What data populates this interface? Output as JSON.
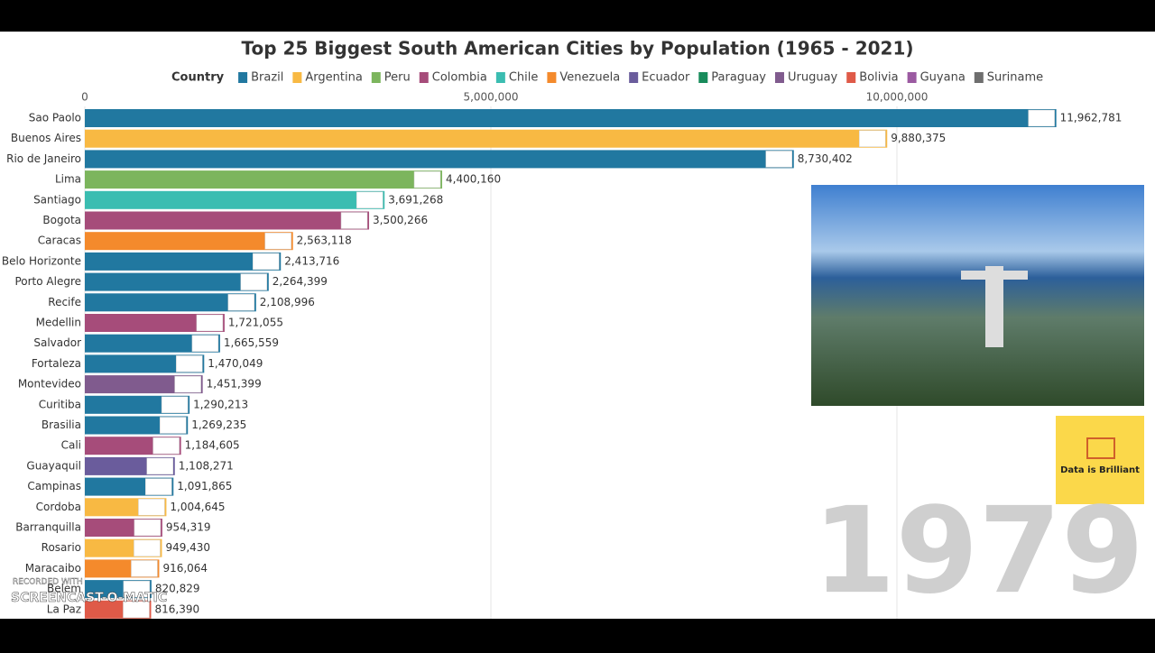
{
  "chart_data": {
    "type": "bar",
    "title": "Top 25 Biggest South American Cities by Population (1965 - 2021)",
    "legend_title": "Country",
    "legend": [
      {
        "name": "Brazil",
        "color": "#2178a0"
      },
      {
        "name": "Argentina",
        "color": "#f8b943"
      },
      {
        "name": "Peru",
        "color": "#7cb55d"
      },
      {
        "name": "Colombia",
        "color": "#a64c7a"
      },
      {
        "name": "Chile",
        "color": "#3bbdb1"
      },
      {
        "name": "Venezuela",
        "color": "#f48a2c"
      },
      {
        "name": "Ecuador",
        "color": "#6a5c9c"
      },
      {
        "name": "Paraguay",
        "color": "#188b5b"
      },
      {
        "name": "Uruguay",
        "color": "#805b8e"
      },
      {
        "name": "Bolivia",
        "color": "#df5a48"
      },
      {
        "name": "Guyana",
        "color": "#9b5aa1"
      },
      {
        "name": "Suriname",
        "color": "#6e6e6e"
      }
    ],
    "categories": [
      "Sao Paolo",
      "Buenos Aires",
      "Rio de Janeiro",
      "Lima",
      "Santiago",
      "Bogota",
      "Caracas",
      "Belo Horizonte",
      "Porto Alegre",
      "Recife",
      "Medellin",
      "Salvador",
      "Fortaleza",
      "Montevideo",
      "Curitiba",
      "Brasilia",
      "Cali",
      "Guayaquil",
      "Campinas",
      "Cordoba",
      "Barranquilla",
      "Rosario",
      "Maracaibo",
      "Belem",
      "La Paz"
    ],
    "values": [
      11962781,
      9880375,
      8730402,
      4400160,
      3691268,
      3500266,
      2563118,
      2413716,
      2264399,
      2108996,
      1721055,
      1665559,
      1470049,
      1451399,
      1290213,
      1269235,
      1184605,
      1108271,
      1091865,
      1004645,
      954319,
      949430,
      916064,
      820829,
      816390
    ],
    "value_labels": [
      "11,962,781",
      "9,880,375",
      "8,730,402",
      "4,400,160",
      "3,691,268",
      "3,500,266",
      "2,563,118",
      "2,413,716",
      "2,264,399",
      "2,108,996",
      "1,721,055",
      "1,665,559",
      "1,470,049",
      "1,451,399",
      "1,290,213",
      "1,269,235",
      "1,184,605",
      "1,108,271",
      "1,091,865",
      "1,004,645",
      "954,319",
      "949,430",
      "916,064",
      "820,829",
      "816,390"
    ],
    "colors": [
      "#2178a0",
      "#f8b943",
      "#2178a0",
      "#7cb55d",
      "#3bbdb1",
      "#a64c7a",
      "#f48a2c",
      "#2178a0",
      "#2178a0",
      "#2178a0",
      "#a64c7a",
      "#2178a0",
      "#2178a0",
      "#805b8e",
      "#2178a0",
      "#2178a0",
      "#a64c7a",
      "#6a5c9c",
      "#2178a0",
      "#f8b943",
      "#a64c7a",
      "#f8b943",
      "#f48a2c",
      "#2178a0",
      "#df5a48"
    ],
    "xlim": [
      0,
      13000000
    ],
    "xticks": [
      0,
      {
        "value": 5000000,
        "label": "5,000,000"
      },
      {
        "value": 10000000,
        "label": "10,000,000"
      }
    ],
    "grid": true,
    "year": "1979",
    "logo_text": "Data is Brilliant",
    "watermark": [
      "RECORDED WITH",
      "SCREENCAST-O-MATIC"
    ]
  }
}
